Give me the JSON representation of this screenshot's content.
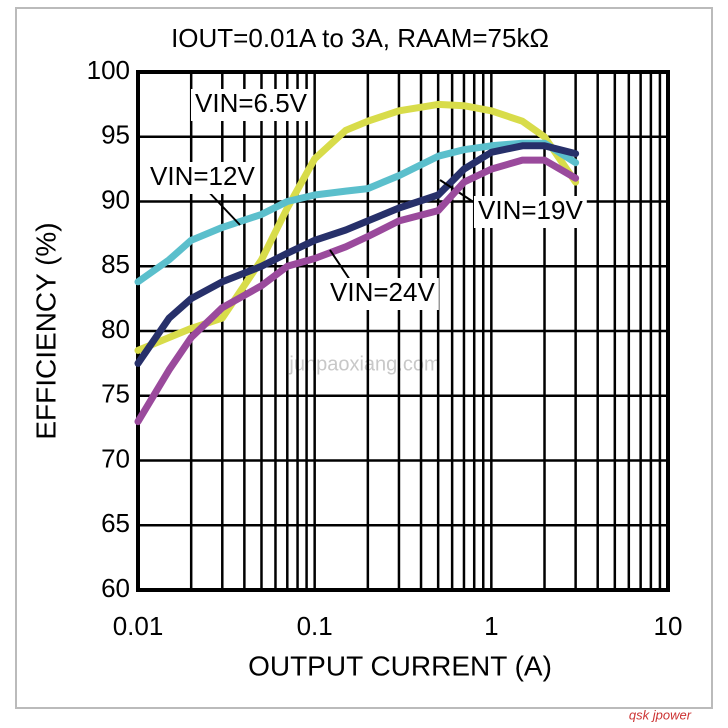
{
  "chart_data": {
    "type": "line",
    "title": "IOUT=0.01A to 3A, RAAM=75kΩ",
    "xlabel": "OUTPUT CURRENT (A)",
    "ylabel": "EFFICIENCY (%)",
    "xscale": "log",
    "grid": true,
    "xlim": [
      0.01,
      10
    ],
    "ylim": [
      60,
      100
    ],
    "xticks": [
      0.01,
      0.1,
      1,
      10
    ],
    "xminor": [
      0.02,
      0.03,
      0.04,
      0.05,
      0.06,
      0.07,
      0.08,
      0.09,
      0.2,
      0.3,
      0.4,
      0.5,
      0.6,
      0.7,
      0.8,
      0.9,
      2,
      3,
      4,
      5,
      6,
      7,
      8,
      9
    ],
    "yticks": [
      60,
      65,
      70,
      75,
      80,
      85,
      90,
      95,
      100
    ],
    "x": [
      0.01,
      0.015,
      0.02,
      0.03,
      0.05,
      0.07,
      0.1,
      0.15,
      0.2,
      0.3,
      0.5,
      0.7,
      1,
      1.5,
      2,
      3
    ],
    "series": [
      {
        "name": "VIN=6.5V",
        "color": "#d8dc4a",
        "values": [
          78.5,
          79.5,
          80.2,
          81,
          85.5,
          89.5,
          93.3,
          95.5,
          96.2,
          97,
          97.5,
          97.4,
          97,
          96.2,
          95,
          91.5
        ]
      },
      {
        "name": "VIN=12V",
        "color": "#5bbfcc",
        "values": [
          83.8,
          85.5,
          87,
          88,
          89,
          90,
          90.5,
          90.8,
          91,
          92,
          93.5,
          94,
          94.3,
          94.5,
          94.5,
          93
        ]
      },
      {
        "name": "VIN=19V",
        "color": "#27306a",
        "values": [
          77.5,
          81,
          82.5,
          83.8,
          85,
          86,
          87,
          87.8,
          88.5,
          89.5,
          90.5,
          92.5,
          93.8,
          94.3,
          94.3,
          93.7
        ]
      },
      {
        "name": "VIN=24V",
        "color": "#9a4a9c",
        "values": [
          73,
          77,
          79.5,
          81.8,
          83.5,
          85,
          85.6,
          86.5,
          87.3,
          88.5,
          89.3,
          91.5,
          92.5,
          93.2,
          93.2,
          91.8
        ]
      }
    ],
    "watermark": "junpaoxiang.com",
    "footer": "qsk jpower"
  }
}
